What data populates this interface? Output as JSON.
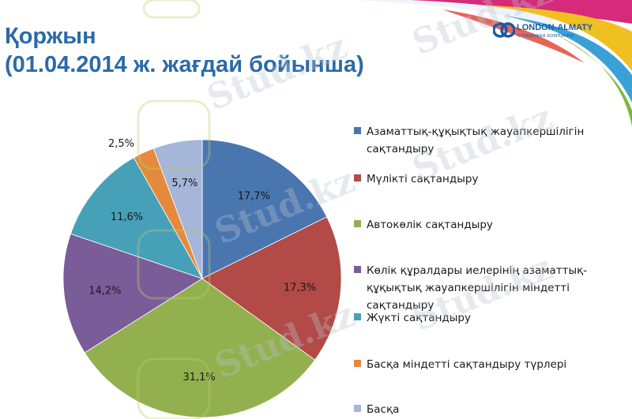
{
  "slide": {
    "title_line1": "Қоржын",
    "title_line2": "(01.04.2014 ж. жағдай бойынша)",
    "logo_name": "LONDON-ALMATY",
    "logo_sub": "СТРАХОВАЯ КОМПАНИЯ",
    "watermark_text": "Stud.kz",
    "accent_color": "#2c6aa8"
  },
  "chart_data": {
    "type": "pie",
    "title": "",
    "slices": [
      {
        "label": "Азаматтық-құқықтық жауапкершілігін сақтандыру",
        "value": 17.7,
        "value_label": "17,7%",
        "color": "#4a76b0"
      },
      {
        "label": "Мүлікті сақтандыру",
        "value": 17.3,
        "value_label": "17,3%",
        "color": "#b24a47"
      },
      {
        "label": "Автокөлік сақтандыру",
        "value": 31.1,
        "value_label": "31,1%",
        "color": "#93b04f"
      },
      {
        "label": "Көлік құралдары иелерінің азаматтық-құқықтық жауапкершілігін міндетті сақтандыру",
        "value": 14.2,
        "value_label": "14,2%",
        "color": "#7a5c98"
      },
      {
        "label": "Жүкті сақтандыру",
        "value": 11.6,
        "value_label": "11,6%",
        "color": "#46a0b8"
      },
      {
        "label": "Басқа міндетті сақтандыру түрлері",
        "value": 2.5,
        "value_label": "2,5%",
        "color": "#e58a3c"
      },
      {
        "label": "Басқа",
        "value": 5.7,
        "value_label": "5,7%",
        "color": "#a5b6d8"
      }
    ],
    "legend_position": "right",
    "start_angle": "12 o'clock",
    "direction": "clockwise"
  }
}
